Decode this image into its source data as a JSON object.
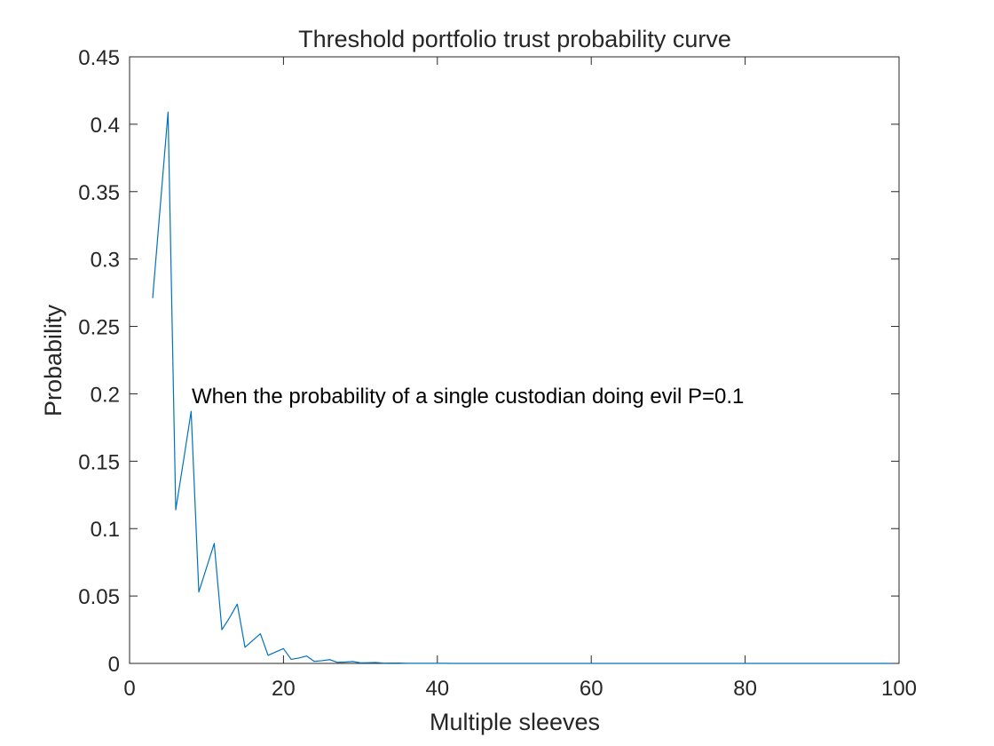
{
  "chart_data": {
    "type": "line",
    "title": "Threshold portfolio trust probability curve",
    "xlabel": "Multiple sleeves",
    "ylabel": "Probability",
    "xlim": [
      0,
      100
    ],
    "ylim": [
      0,
      0.45
    ],
    "grid": false,
    "x_ticks": [
      "0",
      "20",
      "40",
      "60",
      "80",
      "100"
    ],
    "y_ticks": [
      "0",
      "0.05",
      "0.1",
      "0.15",
      "0.2",
      "0.25",
      "0.3",
      "0.35",
      "0.4",
      "0.45"
    ],
    "annotation": "When the probability of a single custodian doing evil P=0.1",
    "series": [
      {
        "color": "#0072BD",
        "x": [
          3,
          4,
          5,
          6,
          7,
          8,
          9,
          10,
          11,
          12,
          13,
          14,
          15,
          16,
          17,
          18,
          19,
          20,
          21,
          22,
          23,
          24,
          25,
          26,
          27,
          28,
          29,
          30,
          31,
          32,
          33,
          34,
          35,
          36,
          37,
          38,
          39,
          40,
          41,
          42,
          43,
          44,
          45,
          46,
          47,
          48,
          49,
          50,
          51,
          52,
          53,
          54,
          55,
          56,
          57,
          58,
          59,
          60,
          61,
          62,
          63,
          64,
          65,
          66,
          67,
          68,
          69,
          70,
          71,
          72,
          73,
          74,
          75,
          76,
          77,
          78,
          79,
          80,
          81,
          82,
          83,
          84,
          85,
          86,
          87,
          88,
          89,
          90,
          91,
          92,
          93,
          94,
          95,
          96,
          97,
          98,
          99
        ],
        "y": [
          0.271,
          0.34,
          0.409,
          0.114,
          0.15,
          0.187,
          0.053,
          0.071,
          0.089,
          0.025,
          0.034,
          0.044,
          0.012,
          0.017,
          0.022,
          0.006,
          0.0085,
          0.011,
          0.003,
          0.004,
          0.0055,
          0.0015,
          0.002,
          0.0028,
          0.0008,
          0.001,
          0.0014,
          0.0004,
          0.0005,
          0.0007,
          0.0002,
          0.0003,
          0.0003,
          0.0001,
          0.0001,
          0.0001,
          0.0001,
          0.0001,
          0.0001,
          0,
          0,
          0,
          0,
          0,
          0,
          0,
          0,
          0,
          0,
          0,
          0,
          0,
          0,
          0,
          0,
          0,
          0,
          0,
          0,
          0,
          0,
          0,
          0,
          0,
          0,
          0,
          0,
          0,
          0,
          0,
          0,
          0,
          0,
          0,
          0,
          0,
          0,
          0,
          0,
          0,
          0,
          0,
          0,
          0,
          0,
          0,
          0,
          0,
          0,
          0,
          0,
          0,
          0,
          0,
          0,
          0,
          0
        ]
      }
    ]
  }
}
